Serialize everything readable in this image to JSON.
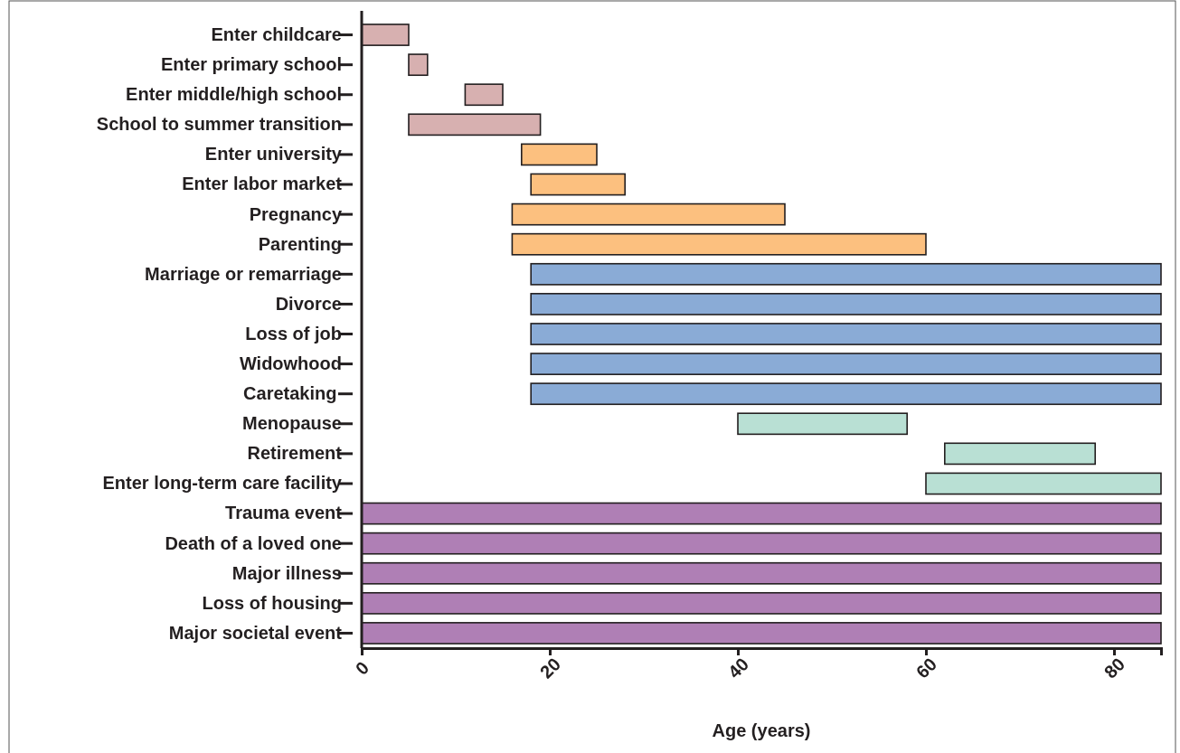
{
  "chart_data": {
    "type": "bar",
    "orientation": "horizontal",
    "xlabel": "Age (years)",
    "categories": [
      "Enter childcare",
      "Enter primary school",
      "Enter middle/high school",
      "School to summer transition",
      "Enter university",
      "Enter labor market",
      "Pregnancy",
      "Parenting",
      "Marriage or remarriage",
      "Divorce",
      "Loss of job",
      "Widowhood",
      "Caretaking ",
      "Menopause",
      "Retirement",
      "Enter long-term care facility",
      "Trauma event",
      "Death of a loved one",
      "Major illness",
      "Loss of housing",
      "Major societal event"
    ],
    "base": [
      0,
      5,
      11,
      5,
      17,
      18,
      16,
      16,
      18,
      18,
      18,
      18,
      18,
      40,
      62,
      60,
      0,
      0,
      0,
      0,
      0
    ],
    "values": [
      5,
      2,
      4,
      14,
      8,
      10,
      29,
      44,
      67,
      67,
      67,
      67,
      67,
      18,
      16,
      25,
      85,
      85,
      85,
      85,
      85
    ],
    "colors": [
      "#d7b0b0",
      "#d7b0b0",
      "#d7b0b0",
      "#d7b0b0",
      "#fcc07f",
      "#fcc07f",
      "#fcc07f",
      "#fcc07f",
      "#8aabd6",
      "#8aabd6",
      "#8aabd6",
      "#8aabd6",
      "#8aabd6",
      "#b9e0d4",
      "#b9e0d4",
      "#b9e0d4",
      "#af7fb5",
      "#af7fb5",
      "#af7fb5",
      "#af7fb5",
      "#af7fb5"
    ],
    "xlim": [
      0,
      85
    ],
    "xticks": [
      0,
      20,
      40,
      60,
      80
    ]
  }
}
